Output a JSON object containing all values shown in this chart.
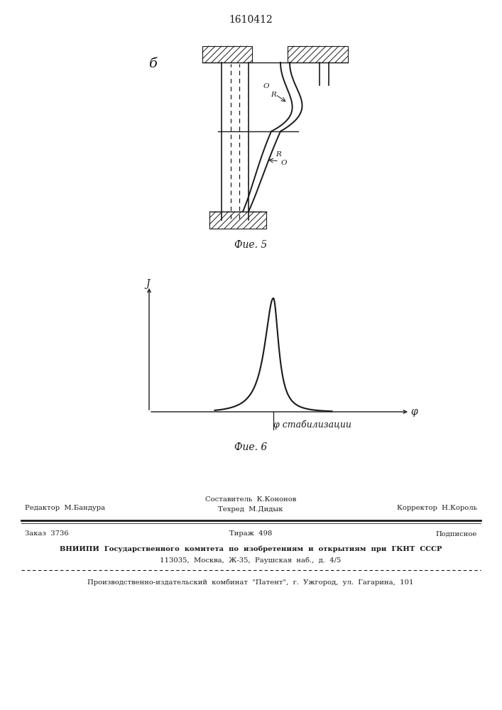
{
  "patent_number": "1610412",
  "fig5_label": "б",
  "fig5_caption": "Фие. 5",
  "fig6_caption": "Фие. 6",
  "label_J": "J",
  "label_phi": "φ",
  "label_phi_stab": "φ стабилизации",
  "label_R": "R",
  "label_O": "O",
  "footer_line1_left": "Редактор  М.Бандура",
  "footer_line1_center_top": "Составитель  К.Кононов",
  "footer_line1_center_bot": "Техред  М.Дидык",
  "footer_line1_right": "Корректор  Н.Король",
  "footer_line2_left": "Заказ  3736",
  "footer_line2_center": "Тираж  498",
  "footer_line2_right": "Подписное",
  "footer_line3": "ВНИИПИ  Государственного  комитета  по  изобретениям  и  открытиям  при  ГКНТ  СССР",
  "footer_line4": "113035,  Москва,  Ж-35,  Раушская  наб.,  д.  4/5",
  "footer_line5": "Производственно-издательский  комбинат  \"Патент\",  г.  Ужгород,  ул.  Гагарина,  101",
  "bg_color": "#ffffff",
  "line_color": "#1a1a1a"
}
